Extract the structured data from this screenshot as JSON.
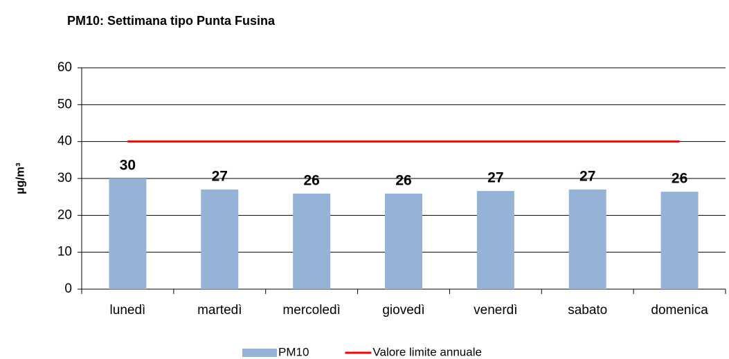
{
  "chart_data": {
    "type": "bar",
    "title": "PM10: Settimana tipo Punta Fusina",
    "y_label": "µg/m³",
    "categories": [
      "lunedì",
      "martedì",
      "mercoledì",
      "giovedì",
      "venerdì",
      "sabato",
      "domenica"
    ],
    "series": [
      {
        "name": "PM10",
        "type": "bar",
        "color": "#95b3d7",
        "values": [
          30.0,
          27.0,
          25.9,
          25.9,
          26.6,
          27.0,
          26.4
        ],
        "value_labels": [
          "30",
          "27",
          "26",
          "26",
          "27",
          "27",
          "26"
        ]
      },
      {
        "name": "Valore limite annuale",
        "type": "line",
        "color": "#ff0000",
        "values": [
          40,
          40,
          40,
          40,
          40,
          40,
          40
        ]
      }
    ],
    "ylim": [
      0,
      60
    ],
    "yticks": [
      0,
      10,
      20,
      30,
      40,
      50,
      60
    ],
    "grid": true,
    "legend": "bottom"
  }
}
